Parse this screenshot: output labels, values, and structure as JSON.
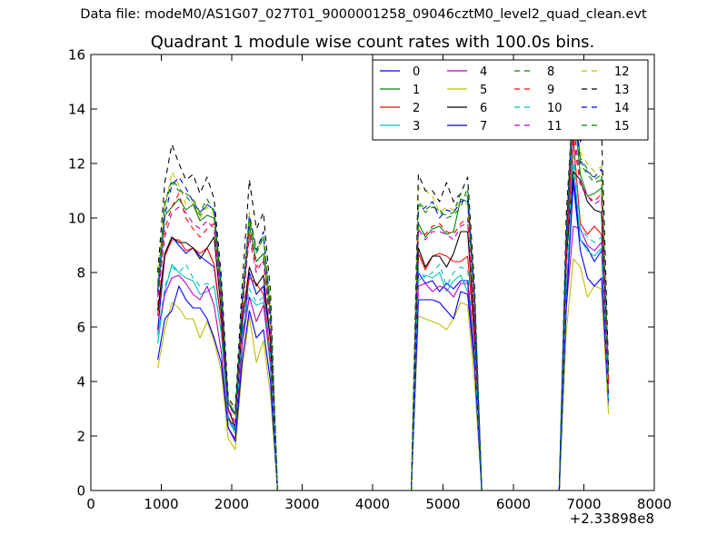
{
  "figure": {
    "suptitle": "Data file: modeM0/AS1G07_027T01_9000001258_09046cztM0_level2_quad_clean.evt"
  },
  "chart_data": {
    "type": "line",
    "title": "Quadrant 1 module wise count rates with 100.0s bins.",
    "xlabel": "",
    "ylabel": "",
    "x_offset_label": "+2.33898e8",
    "xlim": [
      0,
      8000
    ],
    "ylim": [
      0,
      16
    ],
    "xticks": [
      0,
      1000,
      2000,
      3000,
      4000,
      5000,
      6000,
      7000,
      8000
    ],
    "yticks": [
      0,
      2,
      4,
      6,
      8,
      10,
      12,
      14,
      16
    ],
    "grid": false,
    "legend_position": "top-right",
    "legend_columns": 4,
    "x": [
      950,
      1050,
      1150,
      1250,
      1350,
      1450,
      1550,
      1650,
      1750,
      1850,
      1950,
      2050,
      2150,
      2250,
      2350,
      2450,
      2550,
      2650,
      2750,
      4450,
      4550,
      4650,
      4750,
      4850,
      4950,
      5050,
      5150,
      5250,
      5350,
      5450,
      5550,
      5650,
      6650,
      6750,
      6850,
      6950,
      7050,
      7150,
      7250,
      7350
    ],
    "series": [
      {
        "name": "0",
        "color": "#0000ff",
        "style": "solid",
        "values": [
          5.9,
          8.6,
          9.3,
          9.0,
          8.7,
          8.9,
          8.6,
          8.4,
          8.2,
          6.2,
          2.7,
          2.2,
          5.4,
          8.0,
          7.2,
          7.5,
          5.5,
          0,
          0,
          0,
          0,
          8.0,
          7.6,
          7.7,
          7.3,
          7.6,
          7.4,
          7.7,
          7.7,
          5.0,
          0,
          0,
          0,
          7.2,
          11.5,
          9.2,
          8.9,
          8.4,
          8.8,
          3.5
        ]
      },
      {
        "name": "1",
        "color": "#008000",
        "style": "solid",
        "values": [
          7.2,
          10.1,
          10.4,
          10.7,
          10.3,
          10.5,
          9.9,
          10.1,
          10.0,
          7.2,
          3.3,
          2.8,
          6.8,
          9.7,
          8.4,
          8.7,
          6.4,
          0,
          0,
          0,
          0,
          9.8,
          9.3,
          9.6,
          9.7,
          9.4,
          9.5,
          10.7,
          10.6,
          6.8,
          0,
          0,
          0,
          8.7,
          14.2,
          11.6,
          10.8,
          10.9,
          11.1,
          4.0
        ]
      },
      {
        "name": "2",
        "color": "#ff0000",
        "style": "solid",
        "values": [
          6.4,
          8.6,
          9.2,
          9.2,
          8.8,
          8.9,
          8.7,
          8.9,
          8.3,
          6.2,
          2.6,
          2.4,
          6.4,
          7.8,
          7.6,
          7.2,
          5.0,
          0,
          0,
          0,
          0,
          8.7,
          8.1,
          8.6,
          8.7,
          8.6,
          8.4,
          8.4,
          8.6,
          5.5,
          0,
          0,
          0,
          8.3,
          12.9,
          9.8,
          9.4,
          9.7,
          9.4,
          3.6
        ]
      },
      {
        "name": "3",
        "color": "#00bfbf",
        "style": "solid",
        "values": [
          5.4,
          7.3,
          8.3,
          8.0,
          7.8,
          7.7,
          7.2,
          7.3,
          7.5,
          5.8,
          2.6,
          2.1,
          5.9,
          7.1,
          6.8,
          6.9,
          4.5,
          0,
          0,
          0,
          0,
          7.7,
          7.9,
          7.8,
          8.0,
          7.3,
          7.7,
          7.9,
          7.3,
          4.8,
          0,
          0,
          0,
          6.8,
          12.1,
          9.2,
          8.8,
          8.6,
          8.9,
          3.1
        ]
      },
      {
        "name": "4",
        "color": "#bf00bf",
        "style": "solid",
        "values": [
          5.8,
          7.2,
          7.8,
          7.9,
          7.6,
          7.2,
          7.0,
          7.5,
          6.8,
          5.1,
          2.3,
          1.9,
          5.4,
          7.1,
          6.2,
          6.8,
          4.7,
          0,
          0,
          0,
          0,
          7.5,
          7.6,
          7.3,
          7.5,
          7.4,
          7.1,
          7.6,
          7.6,
          4.7,
          0,
          0,
          0,
          6.7,
          9.7,
          9.6,
          9.0,
          8.8,
          9.1,
          3.2
        ]
      },
      {
        "name": "5",
        "color": "#bfbf00",
        "style": "solid",
        "values": [
          4.5,
          5.9,
          6.9,
          6.7,
          6.3,
          6.3,
          5.6,
          6.2,
          5.5,
          4.4,
          1.9,
          1.5,
          4.5,
          6.4,
          4.7,
          5.5,
          3.5,
          0,
          0,
          0,
          0,
          6.4,
          6.3,
          6.2,
          6.1,
          5.9,
          6.3,
          6.9,
          6.8,
          3.9,
          0,
          0,
          0,
          5.8,
          8.5,
          8.2,
          7.1,
          7.5,
          7.4,
          2.8
        ]
      },
      {
        "name": "6",
        "color": "#000000",
        "style": "solid",
        "values": [
          6.6,
          8.7,
          9.3,
          9.1,
          9.1,
          8.9,
          8.5,
          8.9,
          9.3,
          6.6,
          3.0,
          2.3,
          6.2,
          8.2,
          7.5,
          7.9,
          5.5,
          0,
          0,
          0,
          0,
          8.9,
          8.2,
          8.6,
          8.6,
          8.2,
          8.7,
          9.5,
          9.5,
          5.8,
          0,
          0,
          0,
          8.5,
          11.7,
          11.4,
          10.6,
          10.3,
          10.2,
          3.9
        ]
      },
      {
        "name": "7",
        "color": "#0000ff",
        "style": "solid",
        "values": [
          4.8,
          6.3,
          6.6,
          7.5,
          7.0,
          6.7,
          6.7,
          6.3,
          5.6,
          4.7,
          2.3,
          1.8,
          4.8,
          6.6,
          5.6,
          5.9,
          4.0,
          0,
          0,
          0,
          0,
          7.0,
          7.0,
          7.0,
          6.9,
          6.6,
          6.3,
          7.3,
          7.2,
          4.5,
          0,
          0,
          0,
          6.7,
          11.3,
          8.8,
          7.8,
          7.5,
          7.8,
          3.3
        ]
      },
      {
        "name": "8",
        "color": "#008000",
        "style": "dashed",
        "values": [
          7.5,
          10.6,
          11.4,
          11.1,
          10.8,
          10.5,
          10.1,
          10.5,
          10.3,
          7.5,
          3.2,
          2.8,
          6.9,
          9.9,
          8.7,
          9.3,
          6.6,
          0,
          0,
          0,
          0,
          10.5,
          10.2,
          10.4,
          10.3,
          10.0,
          10.1,
          10.4,
          11.1,
          7.0,
          0,
          0,
          0,
          9.3,
          14.7,
          12.0,
          11.6,
          11.3,
          11.4,
          4.1
        ]
      },
      {
        "name": "9",
        "color": "#ff0000",
        "style": "dashed",
        "values": [
          6.8,
          9.6,
          10.4,
          10.9,
          10.0,
          9.6,
          9.3,
          9.6,
          9.8,
          7.0,
          3.0,
          2.5,
          6.5,
          9.5,
          8.2,
          8.4,
          6.0,
          0,
          0,
          0,
          0,
          9.5,
          9.4,
          9.7,
          9.8,
          9.5,
          9.4,
          9.8,
          10.0,
          6.2,
          0,
          0,
          0,
          8.6,
          13.0,
          11.2,
          10.8,
          10.6,
          10.9,
          3.9
        ]
      },
      {
        "name": "10",
        "color": "#00bfbf",
        "style": "dashed",
        "values": [
          5.7,
          7.5,
          8.2,
          8.0,
          8.3,
          7.8,
          7.5,
          7.6,
          7.5,
          5.8,
          2.6,
          2.2,
          5.8,
          7.4,
          6.9,
          7.1,
          4.9,
          0,
          0,
          0,
          0,
          8.1,
          7.8,
          8.0,
          8.3,
          7.5,
          8.0,
          8.2,
          8.1,
          5.1,
          0,
          0,
          0,
          7.4,
          12.6,
          9.6,
          9.3,
          9.1,
          9.3,
          3.3
        ]
      },
      {
        "name": "11",
        "color": "#bf00bf",
        "style": "dashed",
        "values": [
          7.1,
          9.3,
          10.2,
          10.4,
          10.2,
          9.8,
          9.6,
          9.9,
          9.6,
          7.0,
          3.0,
          2.5,
          6.7,
          9.3,
          8.0,
          8.5,
          6.1,
          0,
          0,
          0,
          0,
          9.6,
          9.2,
          9.5,
          9.5,
          9.4,
          9.2,
          9.7,
          9.8,
          6.3,
          0,
          0,
          0,
          8.7,
          13.5,
          11.3,
          10.8,
          10.5,
          10.7,
          3.9
        ]
      },
      {
        "name": "12",
        "color": "#bfbf00",
        "style": "dashed",
        "values": [
          8.1,
          10.3,
          11.7,
          11.2,
          10.5,
          10.6,
          10.0,
          10.4,
          10.1,
          7.4,
          3.3,
          2.7,
          7.0,
          10.2,
          8.9,
          9.1,
          6.6,
          0,
          0,
          0,
          0,
          11.1,
          11.0,
          10.8,
          10.2,
          10.4,
          10.3,
          10.6,
          10.5,
          6.9,
          0,
          0,
          0,
          9.8,
          14.7,
          12.4,
          12.0,
          11.7,
          11.9,
          4.3
        ]
      },
      {
        "name": "13",
        "color": "#000000",
        "style": "dashed",
        "values": [
          8.0,
          11.3,
          12.7,
          12.0,
          11.4,
          11.6,
          10.9,
          11.5,
          10.7,
          7.9,
          3.4,
          3.0,
          7.6,
          11.4,
          9.6,
          10.2,
          7.3,
          0,
          0,
          0,
          0,
          11.6,
          11.0,
          11.0,
          10.6,
          11.3,
          10.6,
          10.9,
          11.5,
          7.4,
          0,
          0,
          0,
          10.1,
          14.4,
          12.8,
          13.4,
          12.9,
          13.3,
          4.5
        ]
      },
      {
        "name": "14",
        "color": "#0000ff",
        "style": "dashed",
        "values": [
          7.3,
          10.1,
          11.2,
          11.5,
          11.1,
          10.6,
          10.2,
          10.5,
          10.3,
          7.5,
          3.1,
          2.8,
          7.0,
          10.1,
          8.8,
          9.5,
          6.6,
          0,
          0,
          0,
          0,
          10.2,
          10.4,
          10.6,
          10.0,
          10.3,
          10.2,
          10.6,
          10.7,
          6.9,
          0,
          0,
          0,
          9.4,
          14.3,
          12.1,
          11.7,
          11.5,
          11.8,
          4.2
        ]
      },
      {
        "name": "15",
        "color": "#008000",
        "style": "dashed",
        "values": [
          7.6,
          10.5,
          11.3,
          11.0,
          10.9,
          10.7,
          10.2,
          10.7,
          10.2,
          7.6,
          3.2,
          2.8,
          7.0,
          10.0,
          8.8,
          9.4,
          6.7,
          0,
          0,
          0,
          0,
          10.6,
          10.3,
          10.5,
          10.2,
          10.1,
          10.2,
          10.9,
          10.8,
          7.0,
          0,
          0,
          0,
          9.4,
          14.5,
          12.2,
          11.8,
          11.4,
          11.6,
          4.2
        ]
      }
    ]
  }
}
